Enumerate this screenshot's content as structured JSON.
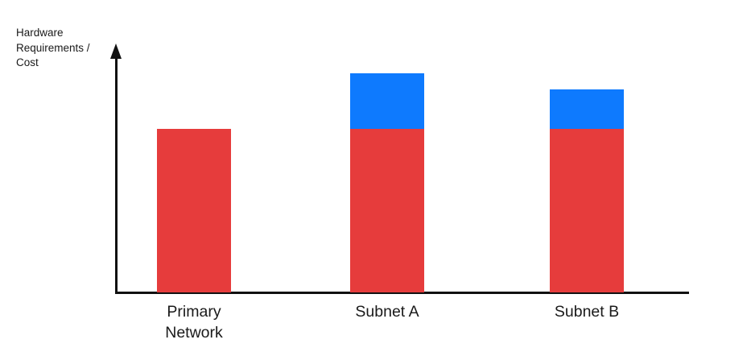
{
  "chart": {
    "y_axis_label": "Hardware Requirements / Cost"
  },
  "chart_data": {
    "type": "bar",
    "stacked": true,
    "title": "",
    "xlabel": "",
    "ylabel": "Hardware Requirements / Cost",
    "categories": [
      "Primary Network",
      "Subnet A",
      "Subnet B"
    ],
    "series": [
      {
        "name": "red",
        "color": "#e63c3c",
        "values": [
          1.0,
          1.0,
          1.0
        ]
      },
      {
        "name": "blue",
        "color": "#0e7afe",
        "values": [
          0,
          0.34,
          0.24
        ]
      }
    ],
    "units": "relative — no numeric scale shown; each red segment height read as 1.0",
    "ylim": [
      0,
      1.6
    ],
    "grid": false,
    "legend": "none",
    "axes": {
      "y_axis_style": "black line with upward arrowhead",
      "x_axis_style": "plain black line",
      "tick_labels": false
    }
  }
}
